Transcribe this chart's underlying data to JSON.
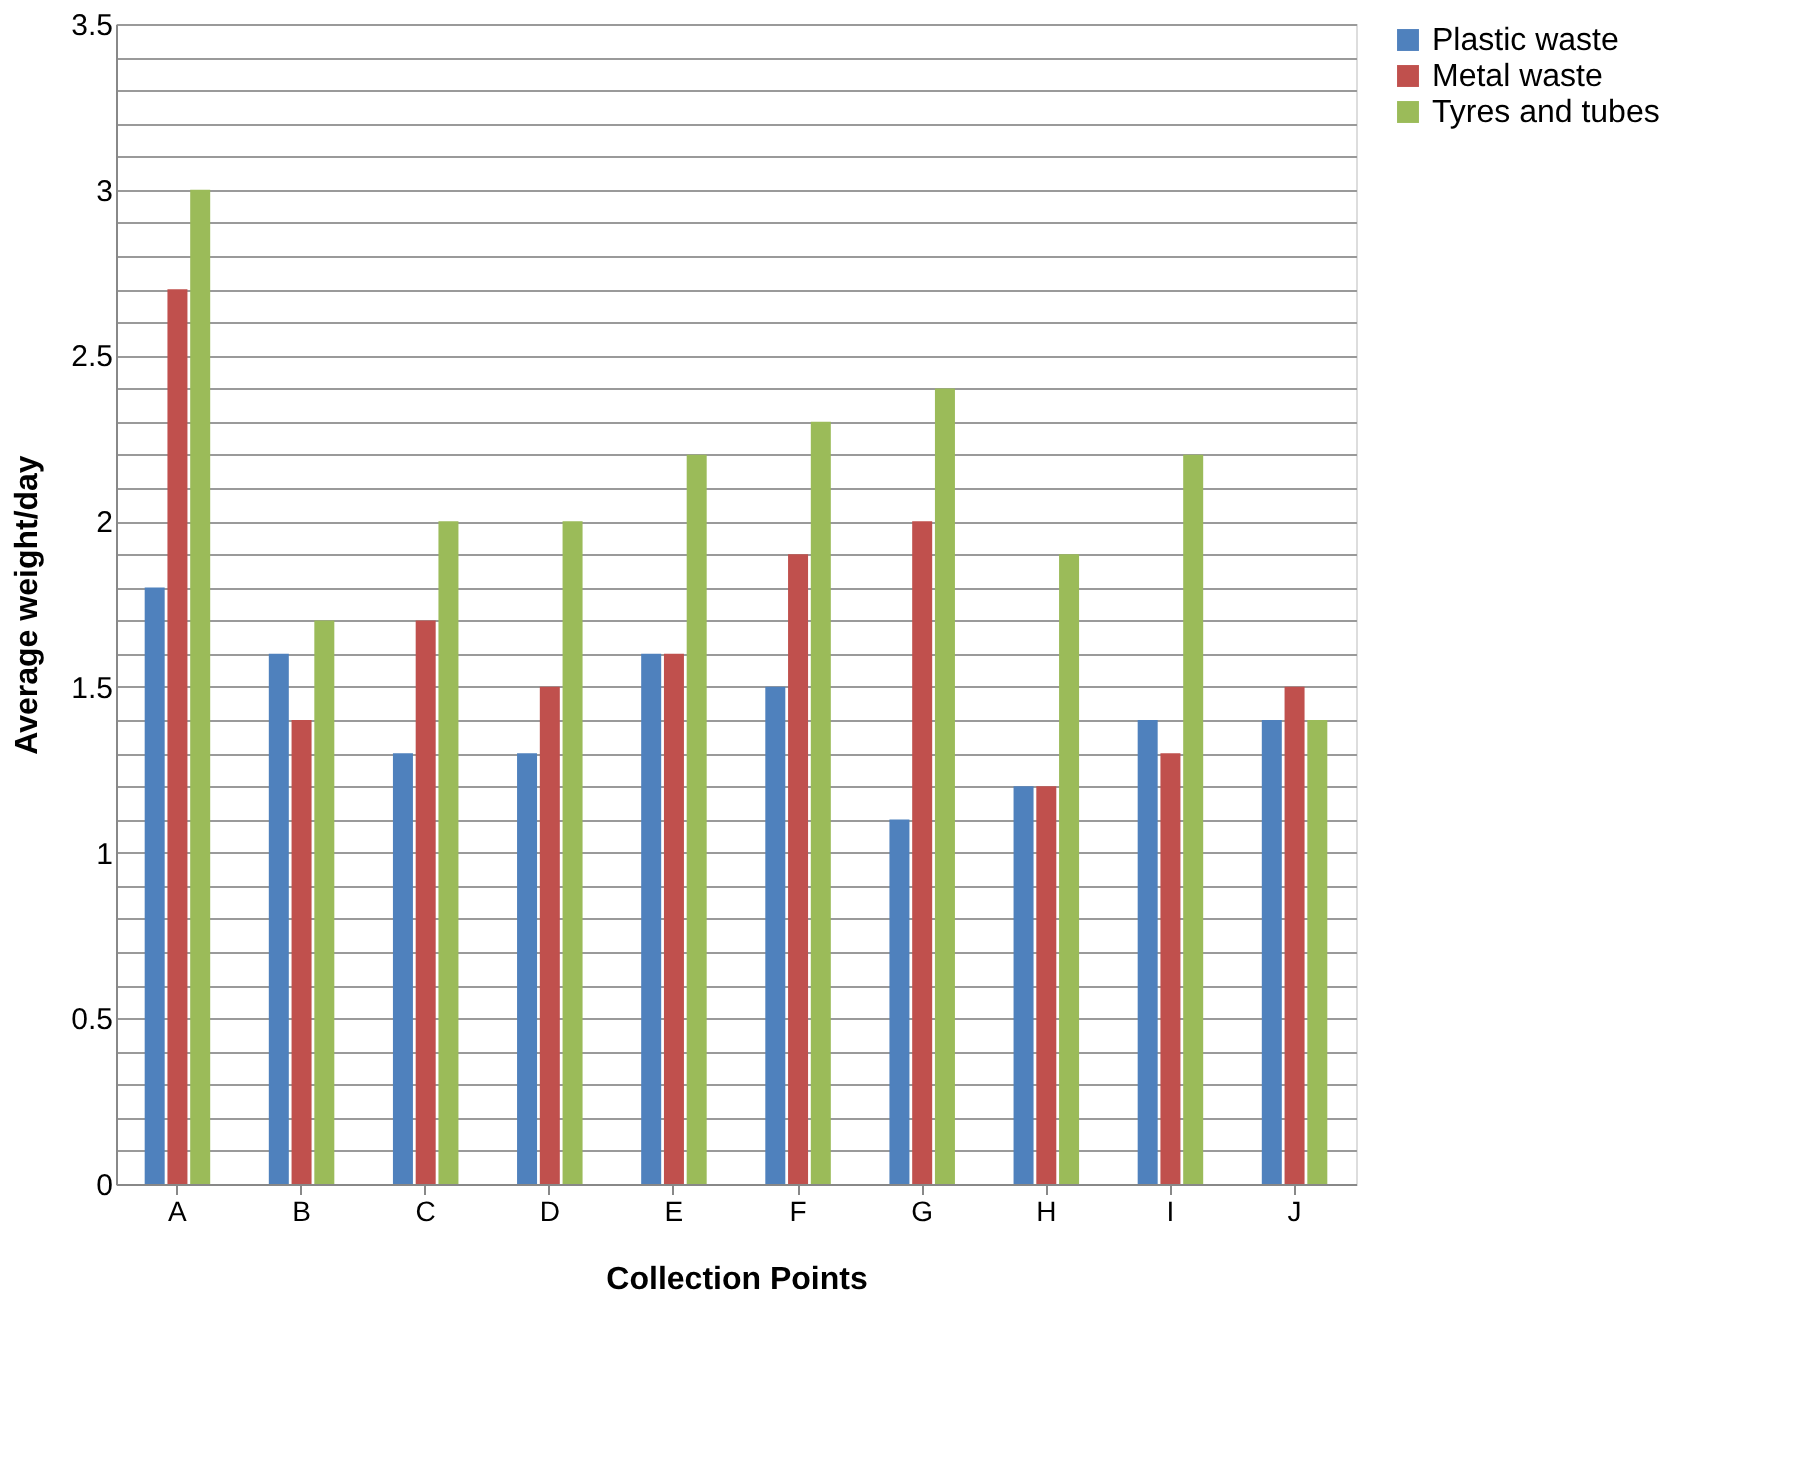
{
  "chart_data": {
    "type": "bar",
    "xlabel": "Collection Points",
    "ylabel": "Average weight/day",
    "categories": [
      "A",
      "B",
      "C",
      "D",
      "E",
      "F",
      "G",
      "H",
      "I",
      "J"
    ],
    "series": [
      {
        "name": "Plastic waste",
        "color": "#4f81bd",
        "values": [
          1.8,
          1.6,
          1.3,
          1.3,
          1.6,
          1.5,
          1.1,
          1.2,
          1.4,
          1.4
        ]
      },
      {
        "name": "Metal waste",
        "color": "#c0504d",
        "values": [
          2.7,
          1.4,
          1.7,
          1.5,
          1.6,
          1.9,
          2.0,
          1.2,
          1.3,
          1.5
        ]
      },
      {
        "name": "Tyres and tubes",
        "color": "#9bbb59",
        "values": [
          3.0,
          1.7,
          2.0,
          2.0,
          2.2,
          2.3,
          2.4,
          1.9,
          2.2,
          1.4
        ]
      }
    ],
    "ylim": [
      0,
      3.5
    ],
    "yticks": [
      0,
      {
        "value": 0.1,
        "label": null
      },
      {
        "value": 0.2,
        "label": null
      },
      {
        "value": 0.3,
        "label": null
      },
      {
        "value": 0.4,
        "label": null
      },
      0.5,
      {
        "value": 0.6,
        "label": null
      },
      {
        "value": 0.7,
        "label": null
      },
      {
        "value": 0.8,
        "label": null
      },
      {
        "value": 0.9,
        "label": null
      },
      1,
      {
        "value": 1.1,
        "label": null
      },
      {
        "value": 1.2,
        "label": null
      },
      {
        "value": 1.3,
        "label": null
      },
      {
        "value": 1.4,
        "label": null
      },
      1.5,
      {
        "value": 1.6,
        "label": null
      },
      {
        "value": 1.7,
        "label": null
      },
      {
        "value": 1.8,
        "label": null
      },
      {
        "value": 1.9,
        "label": null
      },
      2,
      {
        "value": 2.1,
        "label": null
      },
      {
        "value": 2.2,
        "label": null
      },
      {
        "value": 2.3,
        "label": null
      },
      {
        "value": 2.4,
        "label": null
      },
      2.5,
      {
        "value": 2.6,
        "label": null
      },
      {
        "value": 2.7,
        "label": null
      },
      {
        "value": 2.8,
        "label": null
      },
      {
        "value": 2.9,
        "label": null
      },
      3,
      {
        "value": 3.1,
        "label": null
      },
      {
        "value": 3.2,
        "label": null
      },
      {
        "value": 3.3,
        "label": null
      },
      {
        "value": 3.4,
        "label": null
      },
      3.5
    ],
    "grid": "y",
    "legend": "right"
  }
}
